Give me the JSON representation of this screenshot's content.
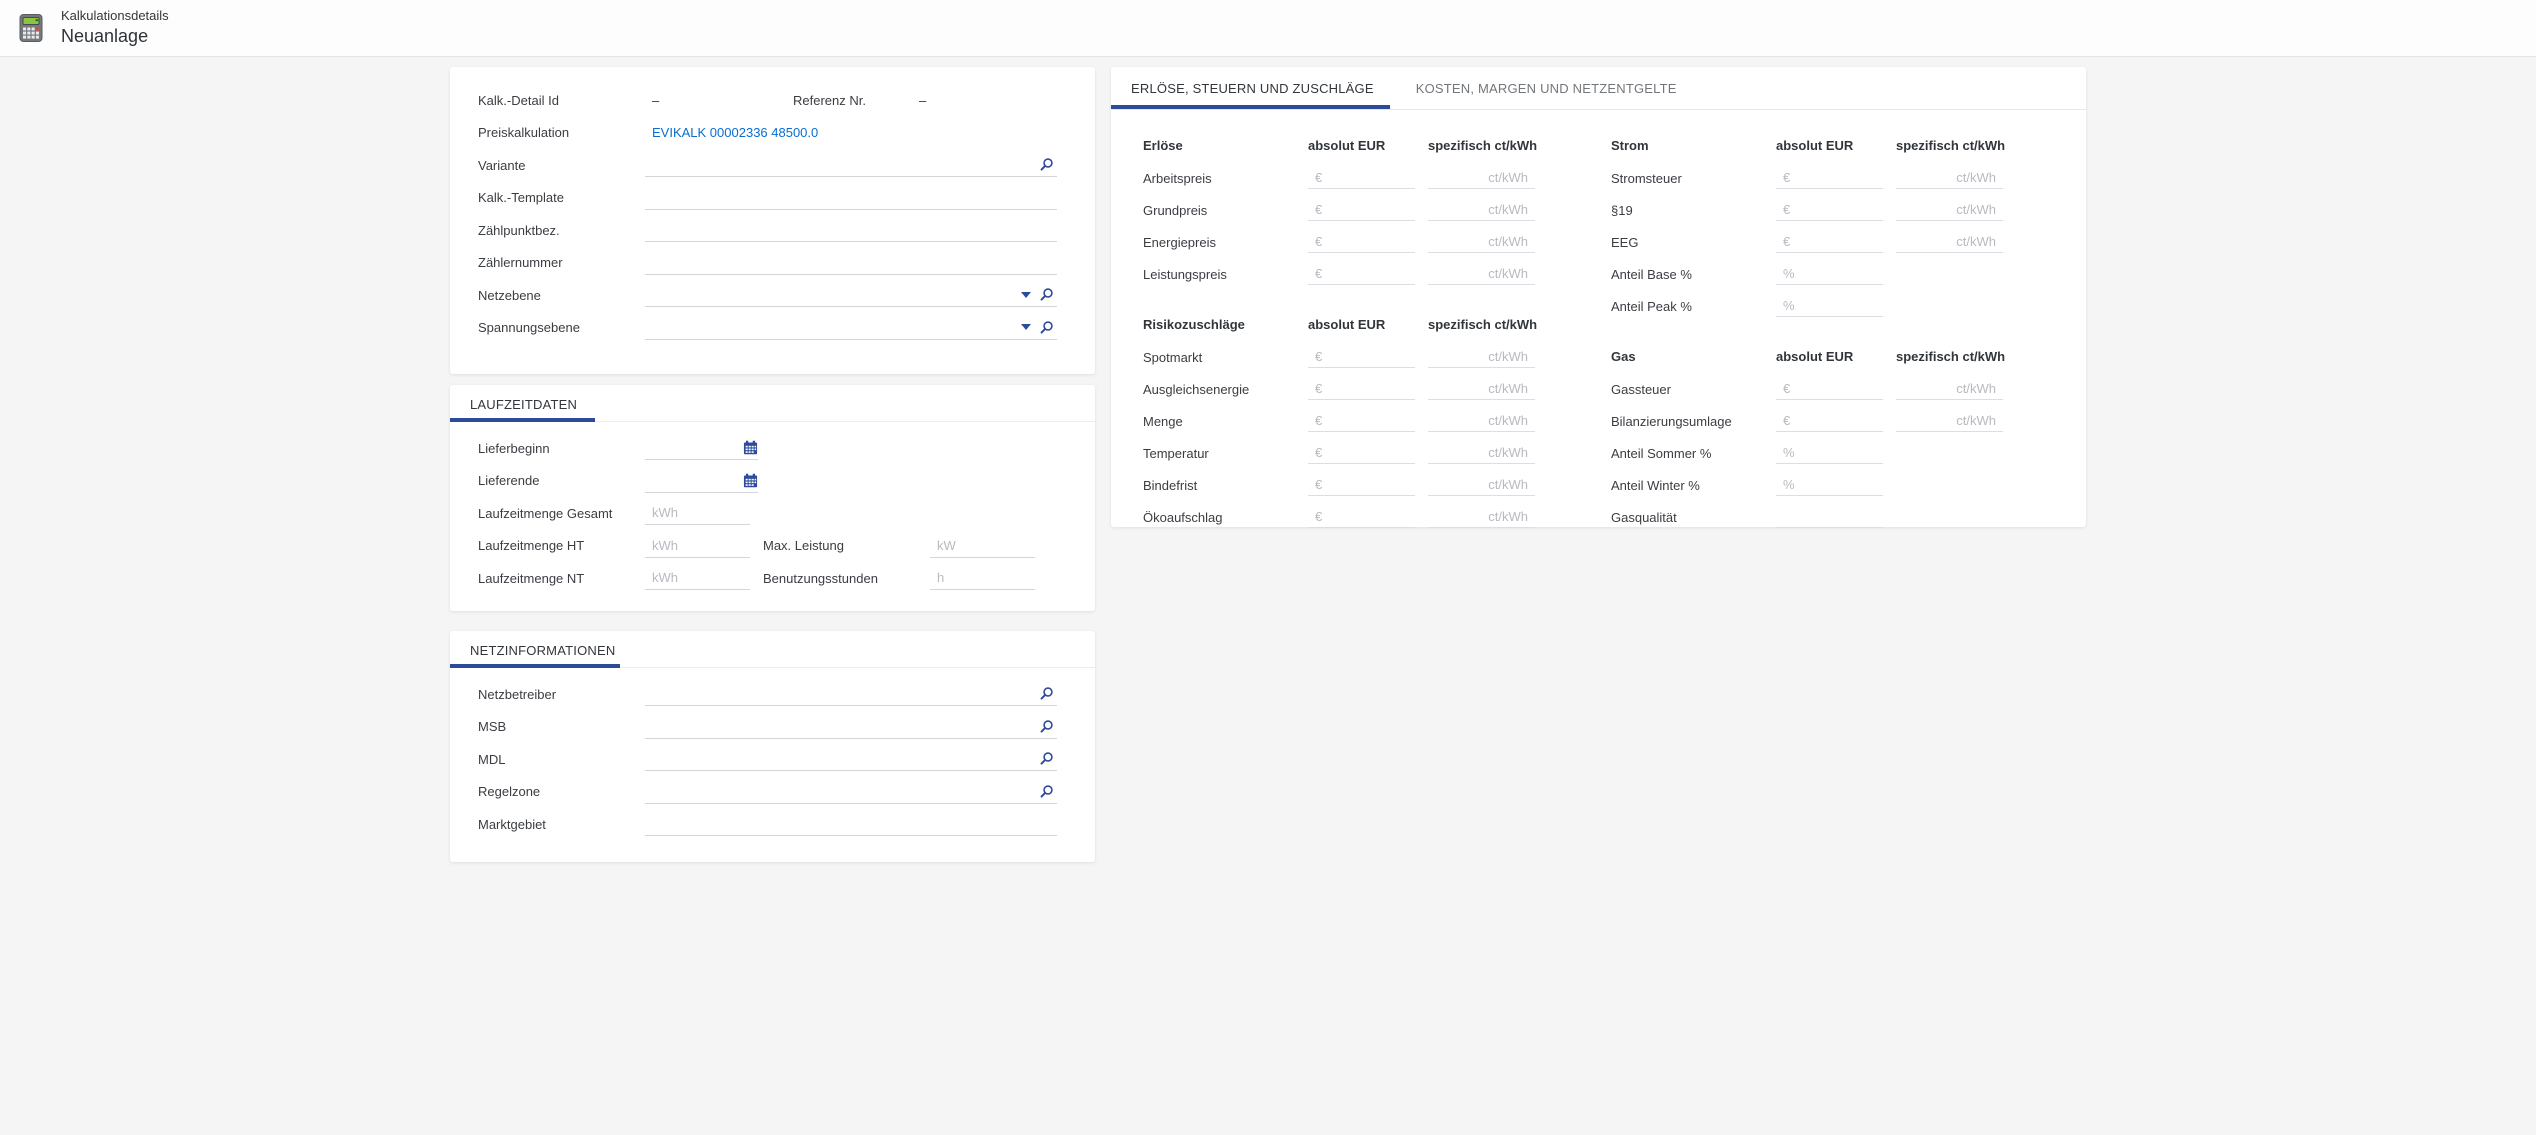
{
  "colors": {
    "accent": "#2e4b9b",
    "link": "#0a6ed1"
  },
  "header": {
    "title": "Kalkulationsdetails",
    "subtitle": "Neuanlage",
    "icon": "calculator-icon"
  },
  "details": {
    "id_row": {
      "label_a": "Kalk.-Detail Id",
      "value_a": "–",
      "label_b": "Referenz Nr.",
      "value_b": "–"
    },
    "link_row": {
      "label": "Preiskalkulation",
      "link": "EVIKALK 00002336 48500.0"
    },
    "fields": [
      {
        "label": "Variante",
        "icons": [
          "search"
        ]
      },
      {
        "label": "Kalk.-Template",
        "icons": []
      },
      {
        "label": "Zählpunktbez.",
        "icons": []
      },
      {
        "label": "Zählernummer",
        "icons": []
      },
      {
        "label": "Netzebene",
        "icons": [
          "dropdown",
          "search"
        ]
      },
      {
        "label": "Spannungsebene",
        "icons": [
          "dropdown",
          "search"
        ]
      }
    ]
  },
  "laufzeitdaten": {
    "title": "LAUFZEITDATEN",
    "rows": [
      {
        "label": "Lieferbeginn",
        "type": "date"
      },
      {
        "label": "Lieferende",
        "type": "date"
      },
      {
        "label": "Laufzeitmenge Gesamt",
        "placeholder": "kWh"
      },
      {
        "label": "Laufzeitmenge HT",
        "placeholder": "kWh",
        "second": {
          "label": "Max. Leistung",
          "placeholder": "kW"
        }
      },
      {
        "label": "Laufzeitmenge NT",
        "placeholder": "kWh",
        "second": {
          "label": "Benutzungsstunden",
          "placeholder": "h"
        }
      }
    ]
  },
  "netzinformationen": {
    "title": "NETZINFORMATIONEN",
    "fields": [
      {
        "label": "Netzbetreiber",
        "icons": [
          "search"
        ]
      },
      {
        "label": "MSB",
        "icons": [
          "search"
        ]
      },
      {
        "label": "MDL",
        "icons": [
          "search"
        ]
      },
      {
        "label": "Regelzone",
        "icons": [
          "search"
        ]
      },
      {
        "label": "Marktgebiet",
        "icons": []
      }
    ]
  },
  "panel": {
    "tabs": [
      {
        "label": "ERLÖSE, STEUERN UND ZUSCHLÄGE",
        "active": true
      },
      {
        "label": "KOSTEN, MARGEN UND NETZENTGELTE",
        "active": false
      }
    ],
    "columns": {
      "left": [
        {
          "title": "Erlöse",
          "col1": "absolut EUR",
          "col2": "spezifisch ct/kWh",
          "rows": [
            {
              "label": "Arbeitspreis",
              "ph1": "€",
              "ph2": "ct/kWh"
            },
            {
              "label": "Grundpreis",
              "ph1": "€",
              "ph2": "ct/kWh"
            },
            {
              "label": "Energiepreis",
              "ph1": "€",
              "ph2": "ct/kWh"
            },
            {
              "label": "Leistungspreis",
              "ph1": "€",
              "ph2": "ct/kWh"
            }
          ]
        },
        {
          "title": "Risikozuschläge",
          "col1": "absolut EUR",
          "col2": "spezifisch ct/kWh",
          "rows": [
            {
              "label": "Spotmarkt",
              "ph1": "€",
              "ph2": "ct/kWh"
            },
            {
              "label": "Ausgleichsenergie",
              "ph1": "€",
              "ph2": "ct/kWh"
            },
            {
              "label": "Menge",
              "ph1": "€",
              "ph2": "ct/kWh"
            },
            {
              "label": "Temperatur",
              "ph1": "€",
              "ph2": "ct/kWh"
            },
            {
              "label": "Bindefrist",
              "ph1": "€",
              "ph2": "ct/kWh"
            },
            {
              "label": "Ökoaufschlag",
              "ph1": "€",
              "ph2": "ct/kWh"
            }
          ]
        }
      ],
      "right": [
        {
          "title": "Strom",
          "col1": "absolut EUR",
          "col2": "spezifisch ct/kWh",
          "rows": [
            {
              "label": "Stromsteuer",
              "ph1": "€",
              "ph2": "ct/kWh"
            },
            {
              "label": "§19",
              "ph1": "€",
              "ph2": "ct/kWh"
            },
            {
              "label": "EEG",
              "ph1": "€",
              "ph2": "ct/kWh"
            },
            {
              "label": "Anteil Base %",
              "ph1": "%"
            },
            {
              "label": "Anteil Peak %",
              "ph1": "%"
            }
          ]
        },
        {
          "title": "Gas",
          "col1": "absolut EUR",
          "col2": "spezifisch ct/kWh",
          "rows": [
            {
              "label": "Gassteuer",
              "ph1": "€",
              "ph2": "ct/kWh"
            },
            {
              "label": "Bilanzierungsumlage",
              "ph1": "€",
              "ph2": "ct/kWh"
            },
            {
              "label": "Anteil Sommer %",
              "ph1": "%"
            },
            {
              "label": "Anteil Winter %",
              "ph1": "%"
            },
            {
              "label": "Gasqualität",
              "ph1": ""
            }
          ]
        }
      ]
    }
  }
}
